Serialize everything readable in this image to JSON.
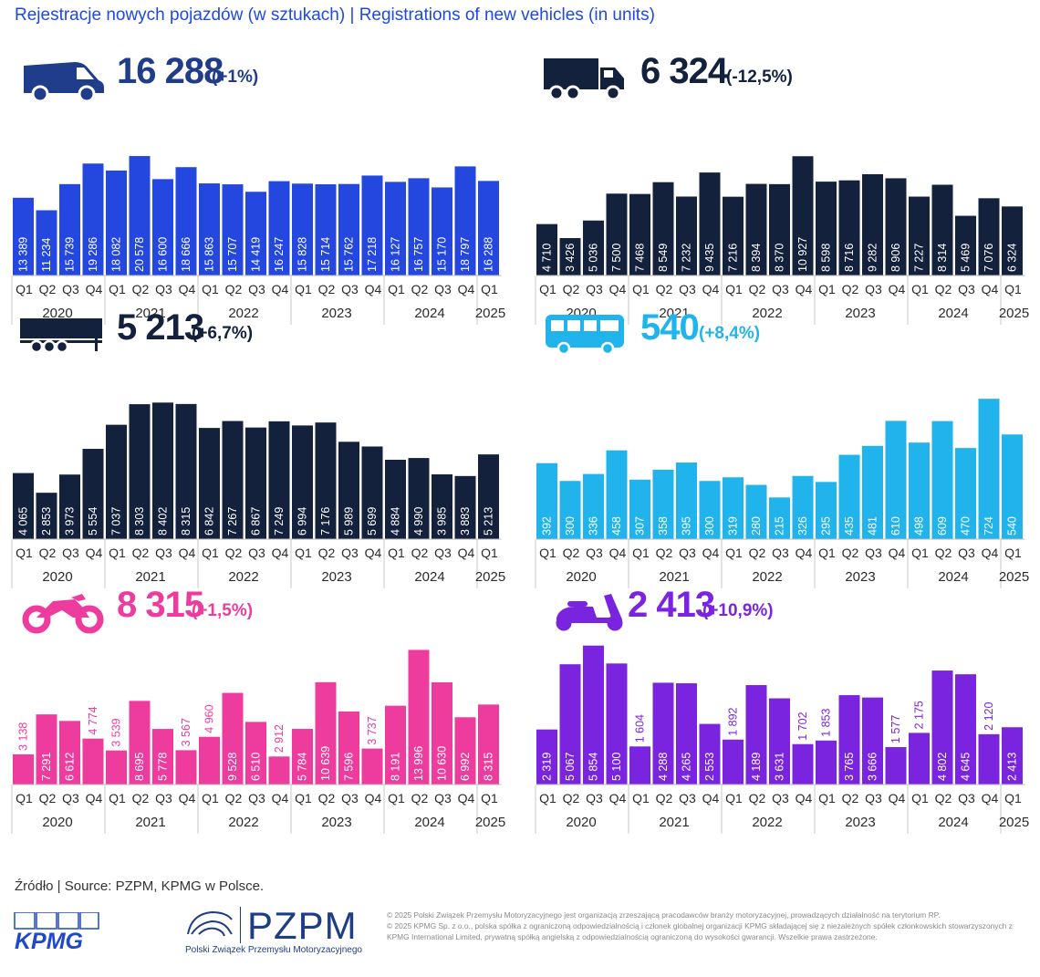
{
  "title": "Rejestracje nowych pojazdów (w sztukach)  | Registrations of new vehicles (in units)",
  "quarters": [
    "Q1",
    "Q2",
    "Q3",
    "Q4",
    "Q1",
    "Q2",
    "Q3",
    "Q4",
    "Q1",
    "Q2",
    "Q3",
    "Q4",
    "Q1",
    "Q2",
    "Q3",
    "Q4",
    "Q1",
    "Q2",
    "Q3",
    "Q4",
    "Q1"
  ],
  "years": [
    "2020",
    "2021",
    "2022",
    "2023",
    "2024",
    "2025"
  ],
  "panels": [
    {
      "id": "vans",
      "icon": "van-icon",
      "color": "#2447e0",
      "numColor": "#1f3d8a",
      "total": "16 288",
      "change": "(+1%)"
    },
    {
      "id": "trucks",
      "icon": "truck-icon",
      "color": "#14213d",
      "numColor": "#14213d",
      "total": "6 324",
      "change": "(-12,5%)"
    },
    {
      "id": "trailers",
      "icon": "trailer-icon",
      "color": "#14213d",
      "numColor": "#14213d",
      "total": "5 213",
      "change": "(+6,7%)"
    },
    {
      "id": "buses",
      "icon": "bus-icon",
      "color": "#21b4ec",
      "numColor": "#21b4ec",
      "total": "540",
      "change": "(+8,4%)"
    },
    {
      "id": "motorcycles",
      "icon": "motorcycle-icon",
      "color": "#ee3c9e",
      "numColor": "#ee3c9e",
      "total": "8 315",
      "change": "(+1,5%)"
    },
    {
      "id": "mopeds",
      "icon": "moped-icon",
      "color": "#7a24e0",
      "numColor": "#7a24e0",
      "total": "2 413",
      "change": "(+10,9%)"
    }
  ],
  "chart_data": [
    {
      "type": "bar",
      "id": "vans",
      "title": "16 288 (+1%)",
      "ylim": [
        0,
        22000
      ],
      "categories": [
        "Q1 2020",
        "Q2 2020",
        "Q3 2020",
        "Q4 2020",
        "Q1 2021",
        "Q2 2021",
        "Q3 2021",
        "Q4 2021",
        "Q1 2022",
        "Q2 2022",
        "Q3 2022",
        "Q4 2022",
        "Q1 2023",
        "Q2 2023",
        "Q3 2023",
        "Q4 2023",
        "Q1 2024",
        "Q2 2024",
        "Q3 2024",
        "Q4 2024",
        "Q1 2025"
      ],
      "values": [
        13389,
        11234,
        15739,
        19286,
        18082,
        20578,
        16600,
        18666,
        15863,
        15707,
        14419,
        16247,
        15828,
        15714,
        15762,
        17218,
        16127,
        16757,
        15170,
        18797,
        16288
      ],
      "labels": [
        "13 389",
        "11 234",
        "15 739",
        "19 286",
        "18 082",
        "20 578",
        "16 600",
        "18 666",
        "15 863",
        "15 707",
        "14 419",
        "16 247",
        "15 828",
        "15 714",
        "15 762",
        "17 218",
        "16 127",
        "16 757",
        "15 170",
        "18 797",
        "16 288"
      ]
    },
    {
      "type": "bar",
      "id": "trucks",
      "title": "6 324 (-12,5%)",
      "ylim": [
        0,
        11700
      ],
      "categories": [
        "Q1 2020",
        "Q2 2020",
        "Q3 2020",
        "Q4 2020",
        "Q1 2021",
        "Q2 2021",
        "Q3 2021",
        "Q4 2021",
        "Q1 2022",
        "Q2 2022",
        "Q3 2022",
        "Q4 2022",
        "Q1 2023",
        "Q2 2023",
        "Q3 2023",
        "Q4 2023",
        "Q1 2024",
        "Q2 2024",
        "Q3 2024",
        "Q4 2024",
        "Q1 2025"
      ],
      "values": [
        4710,
        3426,
        5036,
        7500,
        7468,
        8549,
        7232,
        9435,
        7216,
        8394,
        8370,
        10927,
        8598,
        8716,
        9282,
        8906,
        7227,
        8314,
        5469,
        7076,
        6324
      ],
      "labels": [
        "4 710",
        "3 426",
        "5 036",
        "7 500",
        "7 468",
        "8 549",
        "7 232",
        "9 435",
        "7 216",
        "8 394",
        "8 370",
        "10 927",
        "8 598",
        "8 716",
        "9 282",
        "8 906",
        "7 227",
        "8 314",
        "5 469",
        "7 076",
        "6 324"
      ]
    },
    {
      "type": "bar",
      "id": "trailers",
      "title": "5 213 (+6,7%)",
      "ylim": [
        0,
        8700
      ],
      "categories": [
        "Q1 2020",
        "Q2 2020",
        "Q3 2020",
        "Q4 2020",
        "Q1 2021",
        "Q2 2021",
        "Q3 2021",
        "Q4 2021",
        "Q1 2022",
        "Q2 2022",
        "Q3 2022",
        "Q4 2022",
        "Q1 2023",
        "Q2 2023",
        "Q3 2023",
        "Q4 2023",
        "Q1 2024",
        "Q2 2024",
        "Q3 2024",
        "Q4 2024",
        "Q1 2025"
      ],
      "values": [
        4065,
        2853,
        3973,
        5554,
        7037,
        8303,
        8402,
        8315,
        6842,
        7267,
        6867,
        7249,
        6994,
        7176,
        5989,
        5699,
        4884,
        4990,
        3985,
        3883,
        5213
      ],
      "labels": [
        "4 065",
        "2 853",
        "3 973",
        "5 554",
        "7 037",
        "8 303",
        "8 402",
        "8 315",
        "6 842",
        "7 267",
        "6 867",
        "7 249",
        "6 994",
        "7 176",
        "5 989",
        "5 699",
        "4 884",
        "4 990",
        "3 985",
        "3 883",
        "5 213"
      ]
    },
    {
      "type": "bar",
      "id": "buses",
      "title": "540 (+8,4%)",
      "ylim": [
        0,
        800
      ],
      "categories": [
        "Q1 2020",
        "Q2 2020",
        "Q3 2020",
        "Q4 2020",
        "Q1 2021",
        "Q2 2021",
        "Q3 2021",
        "Q4 2021",
        "Q1 2022",
        "Q2 2022",
        "Q3 2022",
        "Q4 2022",
        "Q1 2023",
        "Q2 2023",
        "Q3 2023",
        "Q4 2023",
        "Q1 2024",
        "Q2 2024",
        "Q3 2024",
        "Q4 2024",
        "Q1 2025"
      ],
      "values": [
        392,
        300,
        336,
        458,
        307,
        358,
        395,
        300,
        319,
        280,
        215,
        326,
        295,
        435,
        481,
        610,
        498,
        609,
        470,
        724,
        540
      ],
      "labels": [
        "392",
        "300",
        "336",
        "458",
        "307",
        "358",
        "395",
        "300",
        "319",
        "280",
        "215",
        "326",
        "295",
        "435",
        "481",
        "610",
        "498",
        "609",
        "470",
        "724",
        "540"
      ]
    },
    {
      "type": "bar",
      "id": "motorcycles",
      "title": "8 315 (+1,5%)",
      "ylim": [
        0,
        14700
      ],
      "categories": [
        "Q1 2020",
        "Q2 2020",
        "Q3 2020",
        "Q4 2020",
        "Q1 2021",
        "Q2 2021",
        "Q3 2021",
        "Q4 2021",
        "Q1 2022",
        "Q2 2022",
        "Q3 2022",
        "Q4 2022",
        "Q1 2023",
        "Q2 2023",
        "Q3 2023",
        "Q4 2023",
        "Q1 2024",
        "Q2 2024",
        "Q3 2024",
        "Q4 2024",
        "Q1 2025"
      ],
      "values": [
        3138,
        7291,
        6612,
        4774,
        3539,
        8695,
        5778,
        3567,
        4960,
        9528,
        6510,
        2912,
        5784,
        10639,
        7596,
        3737,
        8191,
        13996,
        10630,
        6992,
        8315
      ],
      "labels": [
        "3 138",
        "7 291",
        "6 612",
        "4 774",
        "3 539",
        "8 695",
        "5 778",
        "3 567",
        "4 960",
        "9 528",
        "6 510",
        "2 912",
        "5 784",
        "10 639",
        "7 596",
        "3 737",
        "8 191",
        "13 996",
        "10 630",
        "6 992",
        "8 315"
      ]
    },
    {
      "type": "bar",
      "id": "mopeds",
      "title": "2 413 (+10,9%)",
      "ylim": [
        0,
        6150
      ],
      "categories": [
        "Q1 2020",
        "Q2 2020",
        "Q3 2020",
        "Q4 2020",
        "Q1 2021",
        "Q2 2021",
        "Q3 2021",
        "Q4 2021",
        "Q1 2022",
        "Q2 2022",
        "Q3 2022",
        "Q4 2022",
        "Q1 2023",
        "Q2 2023",
        "Q3 2023",
        "Q4 2023",
        "Q1 2024",
        "Q2 2024",
        "Q3 2024",
        "Q4 2024",
        "Q1 2025"
      ],
      "values": [
        2319,
        5067,
        5854,
        5100,
        1604,
        4288,
        4265,
        2553,
        1892,
        4189,
        3631,
        1702,
        1853,
        3765,
        3666,
        1577,
        2175,
        4802,
        4645,
        2120,
        2413
      ],
      "labels": [
        "2 319",
        "5 067",
        "5 854",
        "5 100",
        "1 604",
        "4 288",
        "4 265",
        "2 553",
        "1 892",
        "4 189",
        "3 631",
        "1 702",
        "1 853",
        "3 765",
        "3 666",
        "1 577",
        "2 175",
        "4 802",
        "4 645",
        "2 120",
        "2 413"
      ]
    }
  ],
  "footer": {
    "source": "Źródło | Source: PZPM, KPMG w Polsce.",
    "kpmg": "KPMG",
    "pzpm": "PZPM",
    "pzpm_sub": "Polski Związek Przemysłu Motoryzacyjnego",
    "copyright_1": "© 2025 Polski Związek Przemysłu Motoryzacyjnego jest organizacją zrzeszającą pracodawców branży motoryzacyjnej, prowadzących działalność na terytorium RP.",
    "copyright_2": "© 2025 KPMG Sp. z o.o., polska spółka z ograniczoną odpowiedzialnością i członek globalnej organizacji KPMG składającej się z niezależnych spółek członkowskich stowarzyszonych z KPMG International Limited, prywatną spółką angielską z odpowiedzialnością ograniczoną do wysokości gwarancji. Wszelkie prawa zastrzeżone."
  }
}
